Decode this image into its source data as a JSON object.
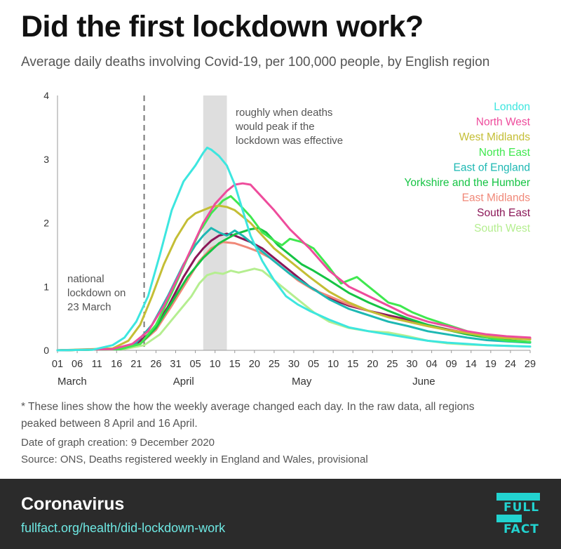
{
  "title": "Did the first lockdown work?",
  "subtitle": "Average daily deaths involving Covid-19, per 100,000 people, by English region",
  "chart_data": {
    "type": "line",
    "title": "Did the first lockdown work?",
    "subtitle": "Average daily deaths involving Covid-19, per 100,000 people, by English region",
    "xlabel": "",
    "ylabel": "",
    "ylim": [
      0,
      4
    ],
    "xlim": [
      1,
      121
    ],
    "x_unit": "day since 1 March 2020",
    "yticks": [
      0,
      1,
      2,
      3,
      4
    ],
    "xtick_positions": [
      1,
      6,
      11,
      16,
      21,
      26,
      31,
      36,
      41,
      46,
      51,
      56,
      61,
      66,
      71,
      76,
      81,
      86,
      91,
      96,
      101,
      106,
      111,
      116,
      121
    ],
    "xtick_labels": [
      "01",
      "06",
      "11",
      "16",
      "21",
      "26",
      "31",
      "05",
      "10",
      "15",
      "20",
      "25",
      "30",
      "05",
      "10",
      "15",
      "20",
      "25",
      "30",
      "04",
      "09",
      "14",
      "19",
      "24",
      "29"
    ],
    "month_labels": [
      {
        "label": "March",
        "at": 1
      },
      {
        "label": "April",
        "at": 33
      },
      {
        "label": "May",
        "at": 63
      },
      {
        "label": "June",
        "at": 94
      }
    ],
    "lockdown_day": 23,
    "lockdown_label": [
      "national",
      "lockdown on",
      "23 March"
    ],
    "peak_band": [
      38,
      44
    ],
    "peak_label": [
      "roughly when deaths",
      "would peak if the",
      "lockdown was effective"
    ],
    "legend_position": "top-right",
    "series": [
      {
        "name": "London",
        "color": "#3de6df",
        "x": [
          1,
          10,
          15,
          18,
          21,
          24,
          27,
          30,
          33,
          36,
          38,
          39,
          40,
          42,
          44,
          46,
          48,
          50,
          53,
          56,
          59,
          62,
          65,
          70,
          75,
          80,
          85,
          90,
          95,
          100,
          105,
          110,
          115,
          121
        ],
        "y": [
          0,
          0.01,
          0.08,
          0.2,
          0.45,
          0.85,
          1.5,
          2.2,
          2.65,
          2.9,
          3.1,
          3.18,
          3.15,
          3.05,
          2.9,
          2.6,
          2.2,
          1.8,
          1.4,
          1.1,
          0.85,
          0.72,
          0.62,
          0.48,
          0.36,
          0.3,
          0.25,
          0.2,
          0.15,
          0.12,
          0.1,
          0.08,
          0.07,
          0.06
        ]
      },
      {
        "name": "North West",
        "color": "#ee4c9c",
        "x": [
          1,
          15,
          20,
          24,
          28,
          32,
          35,
          38,
          41,
          44,
          46,
          48,
          50,
          53,
          56,
          60,
          65,
          70,
          75,
          80,
          85,
          90,
          95,
          100,
          105,
          110,
          115,
          121
        ],
        "y": [
          0,
          0.02,
          0.1,
          0.3,
          0.7,
          1.2,
          1.6,
          2.0,
          2.3,
          2.5,
          2.6,
          2.62,
          2.6,
          2.4,
          2.2,
          1.9,
          1.6,
          1.25,
          1.0,
          0.85,
          0.7,
          0.55,
          0.45,
          0.38,
          0.3,
          0.25,
          0.22,
          0.2
        ]
      },
      {
        "name": "West Midlands",
        "color": "#c4be35",
        "x": [
          1,
          15,
          19,
          22,
          25,
          28,
          31,
          34,
          36,
          38,
          40,
          42,
          44,
          46,
          48,
          50,
          53,
          56,
          60,
          65,
          70,
          75,
          80,
          85,
          90,
          95,
          100,
          105,
          110,
          115,
          121
        ],
        "y": [
          0,
          0.03,
          0.15,
          0.4,
          0.85,
          1.35,
          1.75,
          2.05,
          2.15,
          2.2,
          2.25,
          2.27,
          2.25,
          2.2,
          2.1,
          2.0,
          1.8,
          1.6,
          1.4,
          1.15,
          0.92,
          0.75,
          0.62,
          0.52,
          0.45,
          0.38,
          0.32,
          0.27,
          0.22,
          0.19,
          0.17
        ]
      },
      {
        "name": "North East",
        "color": "#3fe84f",
        "x": [
          1,
          17,
          22,
          26,
          30,
          34,
          37,
          40,
          43,
          45,
          47,
          50,
          53,
          56,
          58,
          60,
          63,
          66,
          70,
          73,
          75,
          77,
          79,
          82,
          85,
          88,
          91,
          95,
          100,
          105,
          110,
          115,
          121
        ],
        "y": [
          0,
          0.02,
          0.1,
          0.4,
          0.9,
          1.45,
          1.85,
          2.15,
          2.35,
          2.42,
          2.3,
          2.1,
          1.85,
          1.72,
          1.65,
          1.75,
          1.7,
          1.6,
          1.3,
          1.05,
          1.1,
          1.15,
          1.05,
          0.9,
          0.75,
          0.7,
          0.6,
          0.5,
          0.4,
          0.3,
          0.2,
          0.15,
          0.13
        ]
      },
      {
        "name": "East of England",
        "color": "#1db8b3",
        "x": [
          1,
          16,
          21,
          25,
          29,
          33,
          36,
          38,
          40,
          42,
          44,
          46,
          48,
          50,
          53,
          56,
          60,
          65,
          70,
          75,
          80,
          85,
          90,
          95,
          100,
          105,
          110,
          115,
          121
        ],
        "y": [
          0,
          0.02,
          0.12,
          0.4,
          0.85,
          1.35,
          1.65,
          1.8,
          1.92,
          1.85,
          1.8,
          1.88,
          1.8,
          1.7,
          1.55,
          1.4,
          1.2,
          1.0,
          0.8,
          0.65,
          0.55,
          0.45,
          0.38,
          0.3,
          0.25,
          0.2,
          0.16,
          0.14,
          0.12
        ]
      },
      {
        "name": "Yorkshire and the Humber",
        "color": "#16c444",
        "x": [
          1,
          17,
          22,
          26,
          30,
          34,
          38,
          42,
          46,
          50,
          52,
          54,
          57,
          60,
          63,
          66,
          70,
          75,
          80,
          85,
          90,
          95,
          100,
          105,
          110,
          115,
          121
        ],
        "y": [
          0,
          0.02,
          0.1,
          0.35,
          0.75,
          1.15,
          1.45,
          1.68,
          1.82,
          1.9,
          1.92,
          1.85,
          1.65,
          1.5,
          1.35,
          1.25,
          1.1,
          0.9,
          0.75,
          0.62,
          0.5,
          0.4,
          0.32,
          0.25,
          0.2,
          0.16,
          0.13
        ]
      },
      {
        "name": "East Midlands",
        "color": "#f08878",
        "x": [
          1,
          17,
          22,
          26,
          30,
          34,
          37,
          40,
          43,
          46,
          49,
          52,
          55,
          58,
          62,
          66,
          70,
          75,
          80,
          85,
          90,
          95,
          100,
          105,
          110,
          115,
          121
        ],
        "y": [
          0,
          0.02,
          0.1,
          0.32,
          0.7,
          1.1,
          1.4,
          1.6,
          1.7,
          1.68,
          1.62,
          1.55,
          1.45,
          1.3,
          1.1,
          0.95,
          0.85,
          0.72,
          0.62,
          0.52,
          0.45,
          0.38,
          0.32,
          0.28,
          0.24,
          0.21,
          0.19
        ]
      },
      {
        "name": "South East",
        "color": "#8b1758",
        "x": [
          1,
          16,
          21,
          25,
          29,
          33,
          36,
          38,
          40,
          42,
          44,
          46,
          48,
          50,
          53,
          56,
          60,
          65,
          70,
          75,
          80,
          85,
          90,
          95,
          100,
          105,
          110,
          115,
          121
        ],
        "y": [
          0,
          0.02,
          0.1,
          0.3,
          0.68,
          1.15,
          1.45,
          1.6,
          1.72,
          1.8,
          1.83,
          1.8,
          1.75,
          1.7,
          1.6,
          1.45,
          1.25,
          1.0,
          0.82,
          0.7,
          0.62,
          0.55,
          0.48,
          0.4,
          0.33,
          0.27,
          0.22,
          0.2,
          0.18
        ]
      },
      {
        "name": "South West",
        "color": "#b5ee90",
        "x": [
          1,
          18,
          23,
          27,
          31,
          35,
          37,
          39,
          41,
          43,
          45,
          47,
          49,
          51,
          53,
          55,
          58,
          62,
          66,
          70,
          75,
          80,
          85,
          90,
          95,
          100,
          105,
          110,
          115,
          121
        ],
        "y": [
          0,
          0.02,
          0.08,
          0.25,
          0.55,
          0.85,
          1.05,
          1.18,
          1.22,
          1.2,
          1.25,
          1.22,
          1.25,
          1.28,
          1.25,
          1.15,
          1.0,
          0.8,
          0.6,
          0.45,
          0.35,
          0.3,
          0.28,
          0.22,
          0.15,
          0.11,
          0.09,
          0.08,
          0.07,
          0.06
        ]
      }
    ]
  },
  "footnote": [
    "* These lines show the how the weekly average changed each day. In the raw data, all regions",
    "peaked between 8 April and 16 April."
  ],
  "created": "Date of graph creation: 9 December 2020",
  "source": "Source: ONS, Deaths registered weekly in England and Wales, provisional",
  "footer": {
    "title": "Coronavirus",
    "link": "fullfact.org/health/did-lockdown-work",
    "logo_text": [
      "FULL",
      "FACT"
    ],
    "logo_color": "#22d3d0"
  }
}
